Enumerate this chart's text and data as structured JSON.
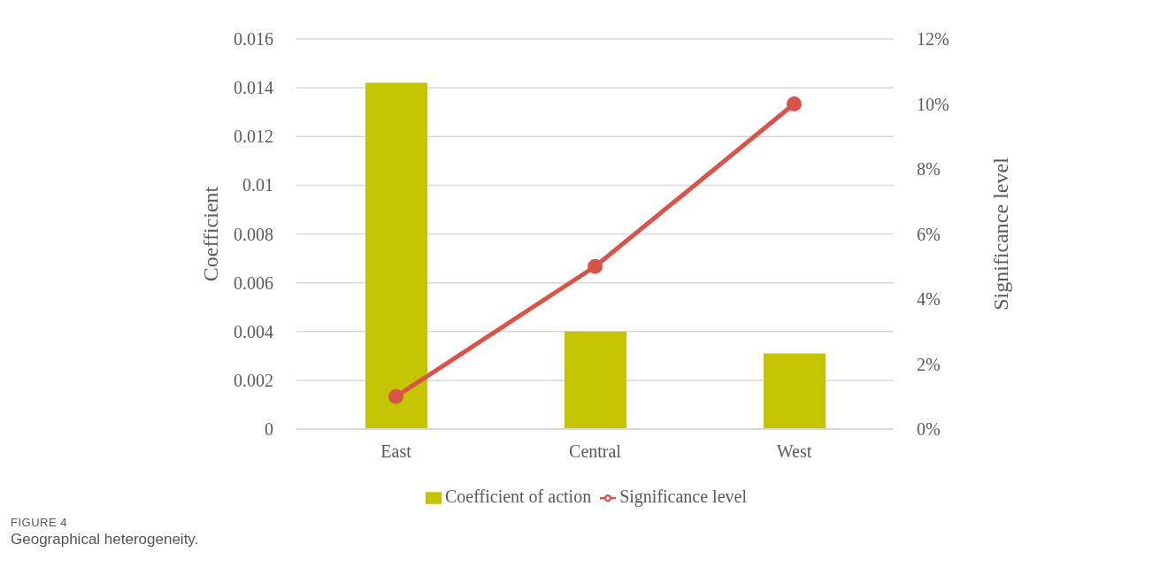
{
  "chart_data": {
    "type": "bar",
    "categories": [
      "East",
      "Central",
      "West"
    ],
    "series": [
      {
        "name": "Coefficient of action",
        "color": "#c4c400",
        "values": [
          0.0142,
          0.004,
          0.0031
        ]
      },
      {
        "name": "Significance level",
        "type": "line",
        "axis": "y2",
        "color": "#d9534a",
        "marker": "circle",
        "values": [
          1,
          5,
          10
        ]
      }
    ],
    "ylabel": "Coefficient",
    "y2label": "Significance level",
    "ylim": [
      0,
      0.016
    ],
    "yticks": [
      0,
      0.002,
      0.004,
      0.006,
      0.008,
      0.01,
      0.012,
      0.014,
      0.016
    ],
    "y2lim": [
      0,
      12
    ],
    "y2ticks": [
      {
        "value": 0,
        "label": "0%"
      },
      {
        "value": 2,
        "label": "2%"
      },
      {
        "value": 4,
        "label": "4%"
      },
      {
        "value": 6,
        "label": "6%"
      },
      {
        "value": 8,
        "label": "8%"
      },
      {
        "value": 10,
        "label": "10%"
      },
      {
        "value": 12,
        "label": "12%"
      }
    ],
    "grid": "y",
    "legend": "bottom",
    "annotations": [
      "FIGURE 4",
      "Geographical heterogeneity."
    ]
  }
}
